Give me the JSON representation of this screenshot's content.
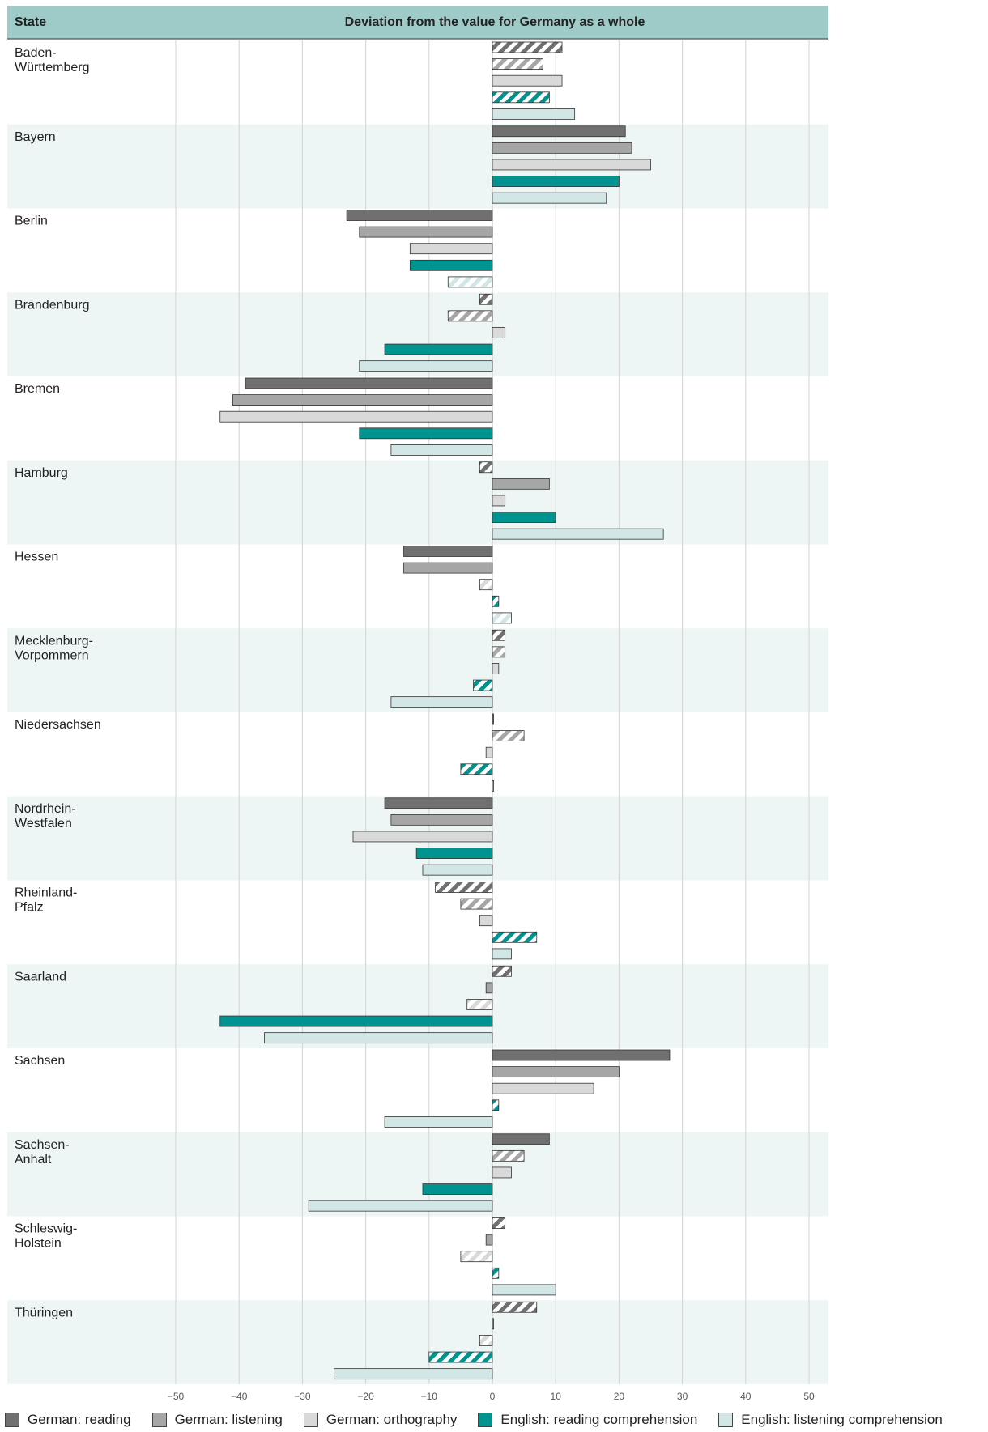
{
  "chart_data": {
    "type": "bar",
    "orientation": "horizontal",
    "header": {
      "left": "State",
      "center": "Deviation from the value for Germany as a whole"
    },
    "xlim": [
      -50,
      50
    ],
    "ticks": [
      -50,
      -40,
      -30,
      -20,
      -10,
      0,
      10,
      20,
      30,
      40,
      50
    ],
    "tick_labels": [
      "−50",
      "−40",
      "−30",
      "−20",
      "−10",
      "0",
      "10",
      "20",
      "30",
      "40",
      "50"
    ],
    "grid": true,
    "legend_position": "bottom",
    "categories": [
      [
        "Baden-",
        "Württemberg"
      ],
      [
        "Bayern"
      ],
      [
        "Berlin"
      ],
      [
        "Brandenburg"
      ],
      [
        "Bremen"
      ],
      [
        "Hamburg"
      ],
      [
        "Hessen"
      ],
      [
        "Mecklenburg-",
        "Vorpommern"
      ],
      [
        "Niedersachsen"
      ],
      [
        "Nordrhein-",
        "Westfalen"
      ],
      [
        "Rheinland-",
        "Pfalz"
      ],
      [
        "Saarland"
      ],
      [
        "Sachsen"
      ],
      [
        "Sachsen-",
        "Anhalt"
      ],
      [
        "Schleswig-",
        "Holstein"
      ],
      [
        "Thüringen"
      ]
    ],
    "series": [
      {
        "name": "German: reading",
        "color": "#707070",
        "values": [
          11,
          21,
          -23,
          -2,
          -39,
          -2,
          -14,
          2,
          0,
          -17,
          -9,
          3,
          28,
          9,
          2,
          7
        ],
        "hatched": [
          true,
          false,
          false,
          true,
          false,
          true,
          false,
          true,
          false,
          false,
          true,
          true,
          false,
          false,
          true,
          true
        ]
      },
      {
        "name": "German: listening",
        "color": "#a6a6a6",
        "values": [
          8,
          22,
          -21,
          -7,
          -41,
          9,
          -14,
          2,
          5,
          -16,
          -5,
          -1,
          20,
          5,
          -1,
          0
        ],
        "hatched": [
          true,
          false,
          false,
          true,
          false,
          false,
          false,
          true,
          true,
          false,
          true,
          false,
          false,
          true,
          false,
          false
        ]
      },
      {
        "name": "German: orthography",
        "color": "#d9d9d9",
        "values": [
          11,
          25,
          -13,
          2,
          -43,
          2,
          -2,
          1,
          -1,
          -22,
          -2,
          -4,
          16,
          3,
          -5,
          -2
        ],
        "hatched": [
          false,
          false,
          false,
          false,
          false,
          false,
          true,
          false,
          false,
          false,
          false,
          true,
          false,
          false,
          true,
          true
        ]
      },
      {
        "name": "English: reading comprehension",
        "color": "#00938f",
        "values": [
          9,
          20,
          -13,
          -17,
          -21,
          10,
          1,
          -3,
          -5,
          -12,
          7,
          -43,
          1,
          -11,
          1,
          -10
        ],
        "hatched": [
          true,
          false,
          false,
          false,
          false,
          false,
          true,
          true,
          true,
          false,
          true,
          false,
          true,
          false,
          true,
          true
        ]
      },
      {
        "name": "English: listening comprehension",
        "color": "#d2e6e6",
        "values": [
          13,
          18,
          -7,
          -21,
          -16,
          27,
          3,
          -16,
          0,
          -11,
          3,
          -36,
          -17,
          -29,
          10,
          -25
        ],
        "hatched": [
          false,
          false,
          true,
          false,
          false,
          false,
          true,
          false,
          false,
          false,
          false,
          false,
          false,
          false,
          false,
          false
        ]
      }
    ]
  }
}
